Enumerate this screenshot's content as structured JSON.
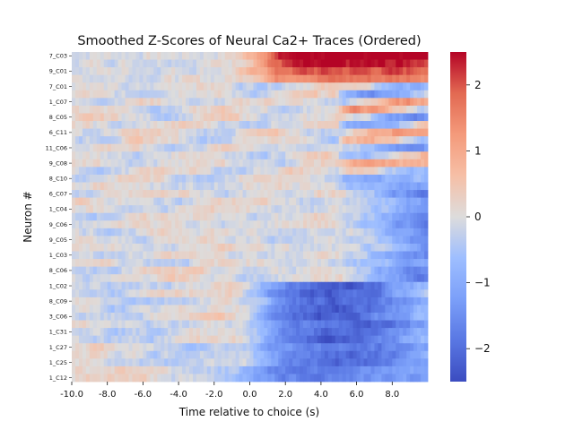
{
  "chart_data": {
    "type": "heatmap",
    "title": "Smoothed Z-Scores of Neural Ca2+ Traces (Ordered)",
    "xlabel": "Time relative to choice (s)",
    "ylabel": "Neuron #",
    "xlim": [
      -10.0,
      10.0
    ],
    "x_ticks": [
      "-10.0",
      "-8.0",
      "-6.0",
      "-4.0",
      "-2.0",
      "0.0",
      "2.0",
      "4.0",
      "6.0",
      "8.0"
    ],
    "x_tick_values": [
      -10,
      -8,
      -6,
      -4,
      -2,
      0,
      2,
      4,
      6,
      8
    ],
    "y_labels": [
      "7_C03",
      "9_C01",
      "7_C01",
      "1_C07",
      "8_C05",
      "6_C11",
      "11_C06",
      "9_C08",
      "8_C10",
      "6_C07",
      "1_C04",
      "9_C06",
      "9_C05",
      "1_C03",
      "8_C06",
      "1_C02",
      "8_C09",
      "3_C06",
      "1_C31",
      "1_C27",
      "1_C25",
      "1_C12"
    ],
    "neuron_count": 43,
    "colormap": "coolwarm",
    "color_range": [
      -2.5,
      2.5
    ],
    "colorbar_ticks": [
      "2",
      "1",
      "0",
      "−1",
      "−2"
    ],
    "colorbar_tick_values": [
      2,
      1,
      0,
      -1,
      -2
    ]
  }
}
